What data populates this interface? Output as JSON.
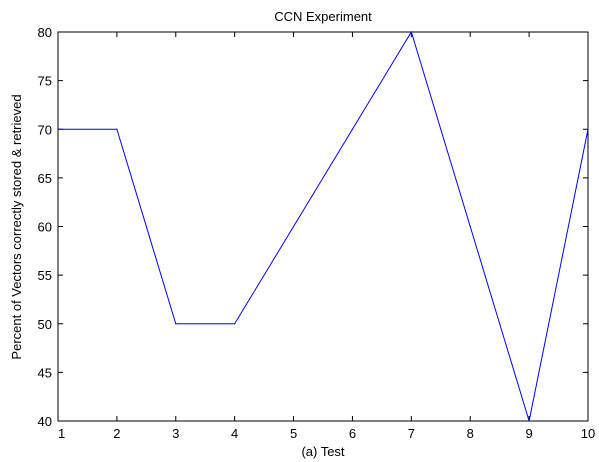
{
  "chart_data": {
    "type": "line",
    "title": "CCN Experiment",
    "xlabel": "(a) Test",
    "ylabel": "Percent of Vectors correctly stored & retrieved",
    "x": [
      1,
      2,
      3,
      4,
      5,
      6,
      7,
      8,
      9,
      10
    ],
    "series": [
      {
        "values": [
          70,
          70,
          50,
          50,
          60,
          70,
          80,
          60,
          40,
          70
        ],
        "color": "#0000ff"
      }
    ],
    "xlim": [
      1,
      10
    ],
    "ylim": [
      40,
      80
    ],
    "xticks": [
      1,
      2,
      3,
      4,
      5,
      6,
      7,
      8,
      9,
      10
    ],
    "yticks": [
      40,
      45,
      50,
      55,
      60,
      65,
      70,
      75,
      80
    ],
    "grid": false,
    "legend": "none"
  }
}
